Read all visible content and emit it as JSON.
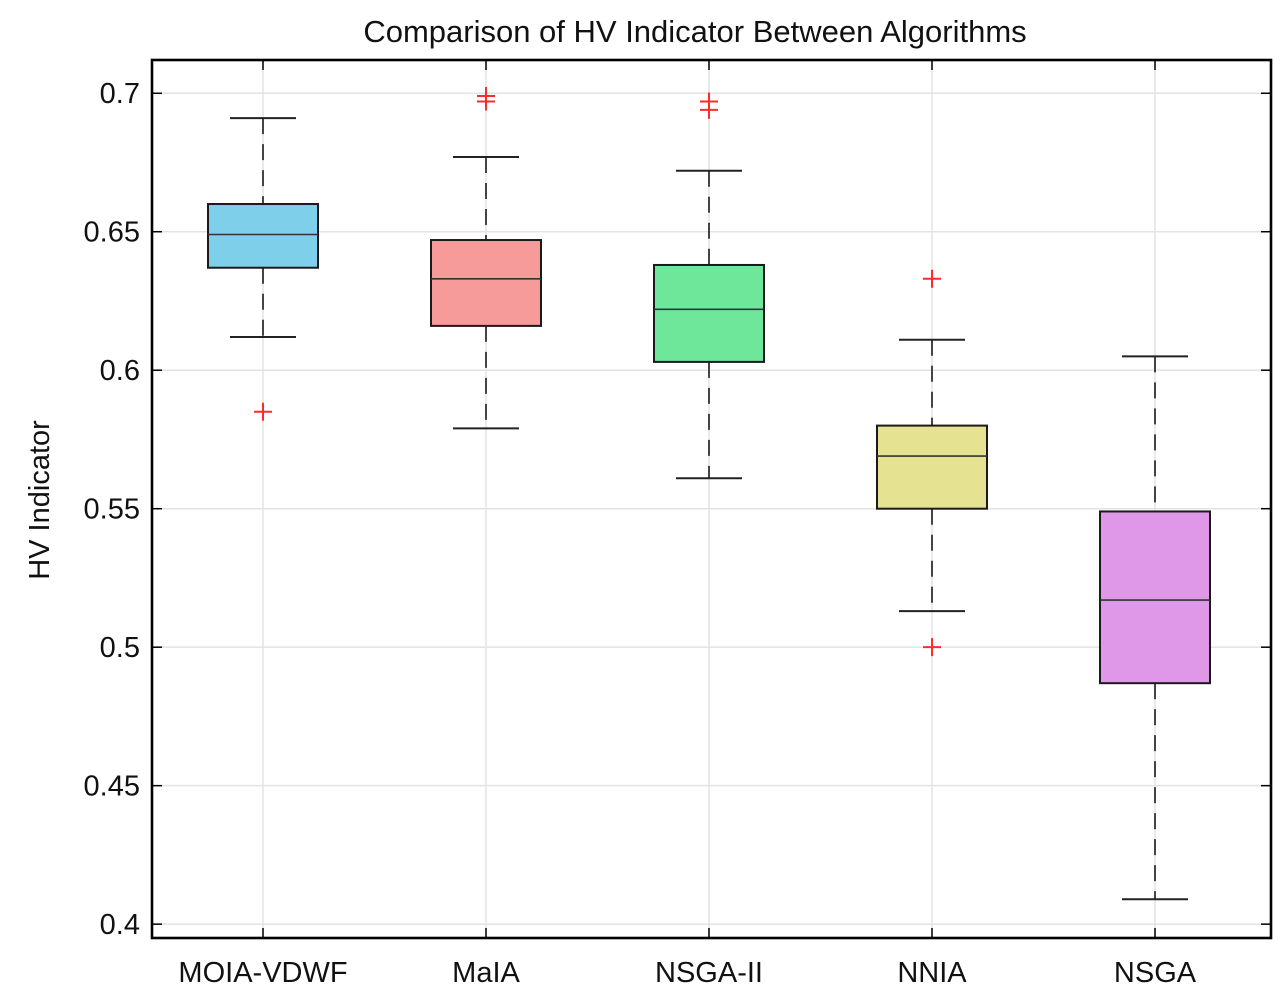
{
  "chart_data": {
    "type": "box",
    "title": "Comparison of HV Indicator Between Algorithms",
    "xlabel": "",
    "ylabel": "HV Indicator",
    "ylim": [
      0.395,
      0.712
    ],
    "yticks": [
      0.4,
      0.45,
      0.5,
      0.55,
      0.6,
      0.65,
      0.7
    ],
    "ytick_labels": [
      "0.4",
      "0.45",
      "0.5",
      "0.55",
      "0.6",
      "0.65",
      "0.7"
    ],
    "grid": true,
    "categories": [
      "MOIA-VDWF",
      "MaIA",
      "NSGA-II",
      "NNIA",
      "NSGA"
    ],
    "boxes": [
      {
        "name": "MOIA-VDWF",
        "whisker_low": 0.612,
        "q1": 0.637,
        "median": 0.649,
        "q3": 0.66,
        "whisker_high": 0.691,
        "outliers": [
          0.585
        ],
        "color": "#7ecfea"
      },
      {
        "name": "MaIA",
        "whisker_low": 0.579,
        "q1": 0.616,
        "median": 0.633,
        "q3": 0.647,
        "whisker_high": 0.677,
        "outliers": [
          0.699,
          0.697
        ],
        "color": "#f79a9a"
      },
      {
        "name": "NSGA-II",
        "whisker_low": 0.561,
        "q1": 0.603,
        "median": 0.622,
        "q3": 0.638,
        "whisker_high": 0.672,
        "outliers": [
          0.697,
          0.694
        ],
        "color": "#6ee79a"
      },
      {
        "name": "NNIA",
        "whisker_low": 0.513,
        "q1": 0.55,
        "median": 0.569,
        "q3": 0.58,
        "whisker_high": 0.611,
        "outliers": [
          0.633,
          0.5
        ],
        "color": "#e5e392"
      },
      {
        "name": "NSGA",
        "whisker_low": 0.409,
        "q1": 0.487,
        "median": 0.517,
        "q3": 0.549,
        "whisker_high": 0.605,
        "outliers": [],
        "color": "#df98e8"
      }
    ],
    "outlier_color": "#ff2a2a"
  }
}
